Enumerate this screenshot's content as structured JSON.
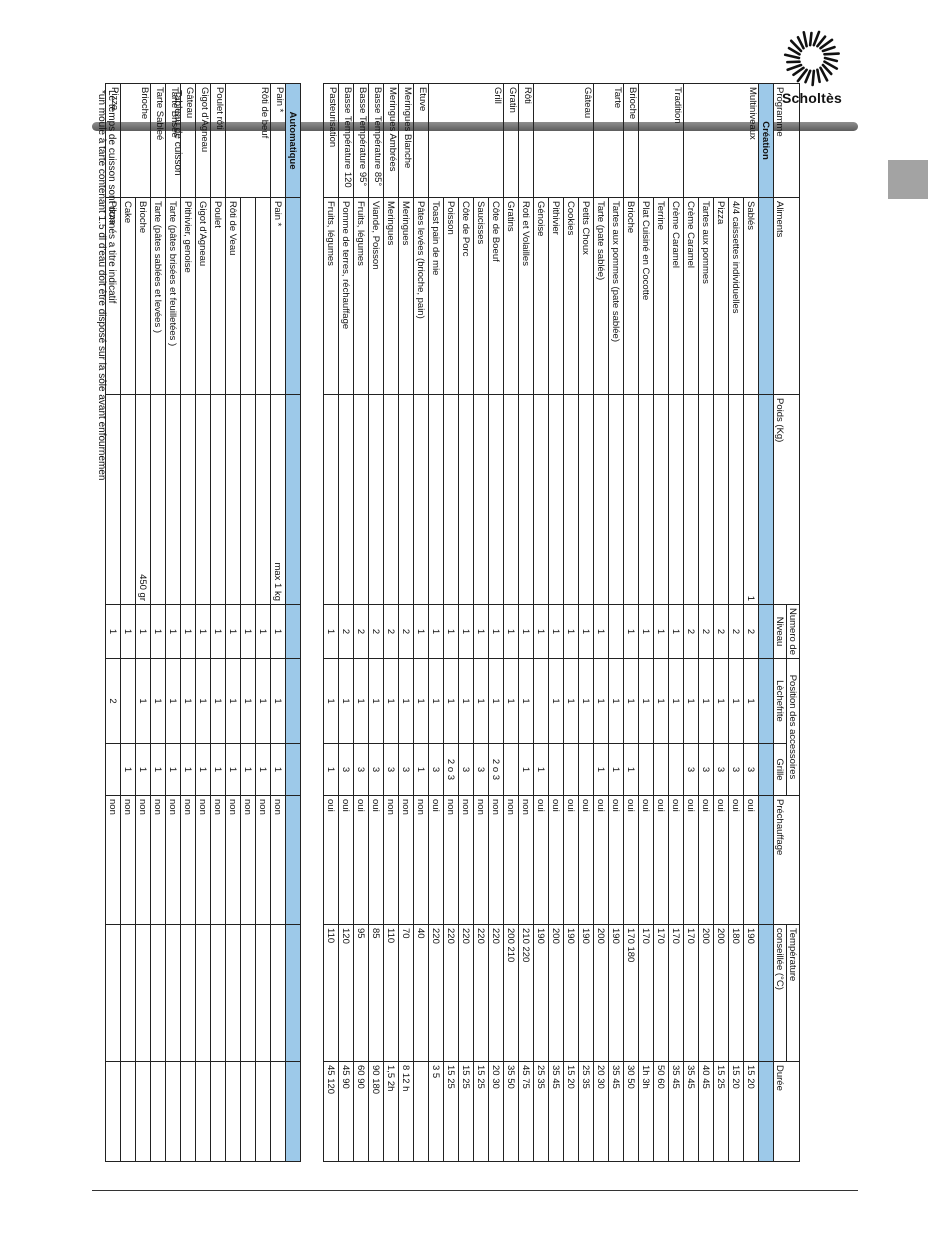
{
  "brand": {
    "name": "Scholtès",
    "accent": "#9dc9e9",
    "bar": "#6e6e6e",
    "tab": "#a3a3a3"
  },
  "title": "Tableau de cuisson",
  "headers": {
    "programme": "Programme",
    "aliments": "Aliments",
    "poids": "Poids (Kg)",
    "numero": "Numero de",
    "niveau": "Niveau",
    "position": "Position des accessoires",
    "lechefrite": "Lèchefrite",
    "grille": "Grille",
    "prechauffage": "Préchauffage",
    "temperature": "Température",
    "temperature2": "conseillée (°C)",
    "duree": "Durée"
  },
  "sections": [
    {
      "title": "Création",
      "groups": [
        {
          "programme": "Multiniveaux",
          "rows": [
            [
              "Sablés",
              "1",
              "2",
              "1",
              "3",
              "oui",
              "190",
              "15 20"
            ],
            [
              "4/4 caissettes individuelles",
              "",
              "2",
              "1",
              "3",
              "oui",
              "180",
              "15 20"
            ],
            [
              "Pizza",
              "",
              "2",
              "1",
              "3",
              "oui",
              "200",
              "15 25"
            ],
            [
              "Tartes aux pommes",
              "",
              "2",
              "1",
              "3",
              "oui",
              "200",
              "40 45"
            ],
            [
              "Crème Caramel",
              "",
              "2",
              "1",
              "3",
              "oui",
              "170",
              "35 45"
            ]
          ]
        },
        {
          "programme": "Tradition",
          "rows": [
            [
              "Crème Caramel",
              "",
              "1",
              "1",
              "",
              "oui",
              "170",
              "35 45"
            ],
            [
              "Terrine",
              "",
              "1",
              "1",
              "",
              "oui",
              "170",
              "50 60"
            ],
            [
              "Plat Cuisiné en Cocotte",
              "",
              "1",
              "1",
              "",
              "oui",
              "170",
              "1h 3h"
            ]
          ]
        },
        {
          "programme": "Brioche",
          "rows": [
            [
              "Brioche",
              "",
              "1",
              "1",
              "1",
              "oui",
              "170 180",
              "30 50"
            ]
          ]
        },
        {
          "programme": "Tarte",
          "rows": [
            [
              "Tartes aux pommes (pate sablée)",
              "",
              "",
              "1",
              "1",
              "oui",
              "190",
              "35 45"
            ],
            [
              "Tarte (pate sablée)",
              "",
              "1",
              "1",
              "1",
              "oui",
              "200",
              "20 30"
            ]
          ]
        },
        {
          "programme": "Gâteau",
          "rows": [
            [
              "Petits Choux",
              "",
              "1",
              "1",
              "",
              "oui",
              "190",
              "25 35"
            ],
            [
              "Cookies",
              "",
              "1",
              "1",
              "",
              "oui",
              "190",
              "15 20"
            ],
            [
              "Pithivier",
              "",
              "1",
              "1",
              "",
              "oui",
              "200",
              "35 45"
            ],
            [
              "Génoise",
              "",
              "1",
              "",
              "1",
              "oui",
              "190",
              "25 35"
            ]
          ]
        },
        {
          "programme": "Rôti",
          "rows": [
            [
              "Roti et Volailles",
              "",
              "1",
              "1",
              "1",
              "non",
              "210 220",
              "45 75"
            ]
          ]
        },
        {
          "programme": "Gratin",
          "rows": [
            [
              "Gratins",
              "",
              "1",
              "1",
              "",
              "non",
              "200 210",
              "35 50"
            ]
          ]
        },
        {
          "programme": "Grill",
          "rows": [
            [
              "Côte de Boeuf",
              "",
              "1",
              "1",
              "2 o 3",
              "non",
              "220",
              "20 30"
            ],
            [
              "Saucisses",
              "",
              "1",
              "1",
              "3",
              "non",
              "220",
              "15 25"
            ],
            [
              "Côte de Porc",
              "",
              "1",
              "1",
              "3",
              "non",
              "220",
              "15 25"
            ],
            [
              "Poisson",
              "",
              "1",
              "1",
              "2 o 3",
              "non",
              "220",
              "15 25"
            ],
            [
              "Toast pain de mie",
              "",
              "1",
              "1",
              "3",
              "oui",
              "220",
              "3  5"
            ]
          ]
        },
        {
          "programme": "Etuve",
          "rows": [
            [
              "Pâtes levées (brioche, pain)",
              "",
              "1",
              "1",
              "1",
              "non",
              "40",
              ""
            ]
          ]
        },
        {
          "programme": "Meringues Blanche",
          "rows": [
            [
              "Meringues",
              "",
              "2",
              "1",
              "3",
              "non",
              "70",
              "8 12 h"
            ]
          ]
        },
        {
          "programme": "Meringues Ambrées",
          "rows": [
            [
              "Meringues",
              "",
              "2",
              "1",
              "3",
              "non",
              "110",
              "1,5 2h"
            ]
          ]
        },
        {
          "programme": "Basse Température 85°",
          "rows": [
            [
              "Viande, Poisson",
              "",
              "2",
              "1",
              "3",
              "oui",
              "85",
              "90 180"
            ]
          ]
        },
        {
          "programme": "Basse Température 95°",
          "rows": [
            [
              "Fruits, légumes",
              "",
              "2",
              "1",
              "3",
              "oui",
              "95",
              "60 90"
            ]
          ]
        },
        {
          "programme": "Basse Température 120",
          "rows": [
            [
              "Pomme de terres, réchauffage",
              "",
              "2",
              "1",
              "3",
              "oui",
              "120",
              "45 90"
            ]
          ]
        },
        {
          "programme": "Pasteurisation",
          "rows": [
            [
              "Fruits, légumes",
              "",
              "1",
              "1",
              "1",
              "oui",
              "110",
              "45 120"
            ]
          ]
        }
      ]
    },
    {
      "title": "Automatique",
      "groups": [
        {
          "programme": "Pain *",
          "rows": [
            [
              "Pain *",
              "max 1 kg",
              "1",
              "1",
              "1",
              "non",
              "",
              ""
            ]
          ]
        },
        {
          "programme": "Rôti de beuf",
          "rows": [
            [
              "",
              "",
              "1",
              "1",
              "1",
              "non",
              "",
              ""
            ],
            [
              "",
              "",
              "1",
              "1",
              "1",
              "non",
              "",
              ""
            ],
            [
              "Rôti de Veau",
              "",
              "1",
              "1",
              "1",
              "non",
              "",
              ""
            ]
          ]
        },
        {
          "programme": "Poulet rôti",
          "rows": [
            [
              "Poulet",
              "",
              "1",
              "1",
              "1",
              "non",
              "",
              ""
            ]
          ]
        },
        {
          "programme": "Gigot d'Agneau",
          "rows": [
            [
              "Gigot d'Agneau",
              "",
              "1",
              "1",
              "1",
              "non",
              "",
              ""
            ]
          ]
        },
        {
          "programme": "Gâteau",
          "rows": [
            [
              "Pithivier, genoise",
              "",
              "1",
              "1",
              "1",
              "non",
              "",
              ""
            ]
          ]
        },
        {
          "programme": "Tarte Brisée",
          "rows": [
            [
              "Tarte (pâtes brisées et feuilletées )",
              "",
              "1",
              "1",
              "1",
              "non",
              "",
              ""
            ]
          ]
        },
        {
          "programme": "Tarte Sableé",
          "rows": [
            [
              "Tarte  (pâtes sablées et levées )",
              "",
              "1",
              "1",
              "1",
              "non",
              "",
              ""
            ]
          ]
        },
        {
          "programme": "Brioche",
          "rows": [
            [
              "Brioche",
              "450 gr",
              "1",
              "1",
              "1",
              "non",
              "",
              ""
            ],
            [
              "Cake",
              "",
              "1",
              "",
              "1",
              "non",
              "",
              ""
            ]
          ]
        },
        {
          "programme": "Pizza",
          "rows": [
            [
              "Pizza",
              "",
              "1",
              "2",
              "",
              "non",
              "",
              ""
            ]
          ]
        }
      ]
    }
  ],
  "footnotes": [
    "Le temps de cuisson sont donnés a titre indicatif",
    "*un moule à tarte contenant 1.5 dl d'eau doit être disposé sur la sôle avant enfournemen"
  ]
}
